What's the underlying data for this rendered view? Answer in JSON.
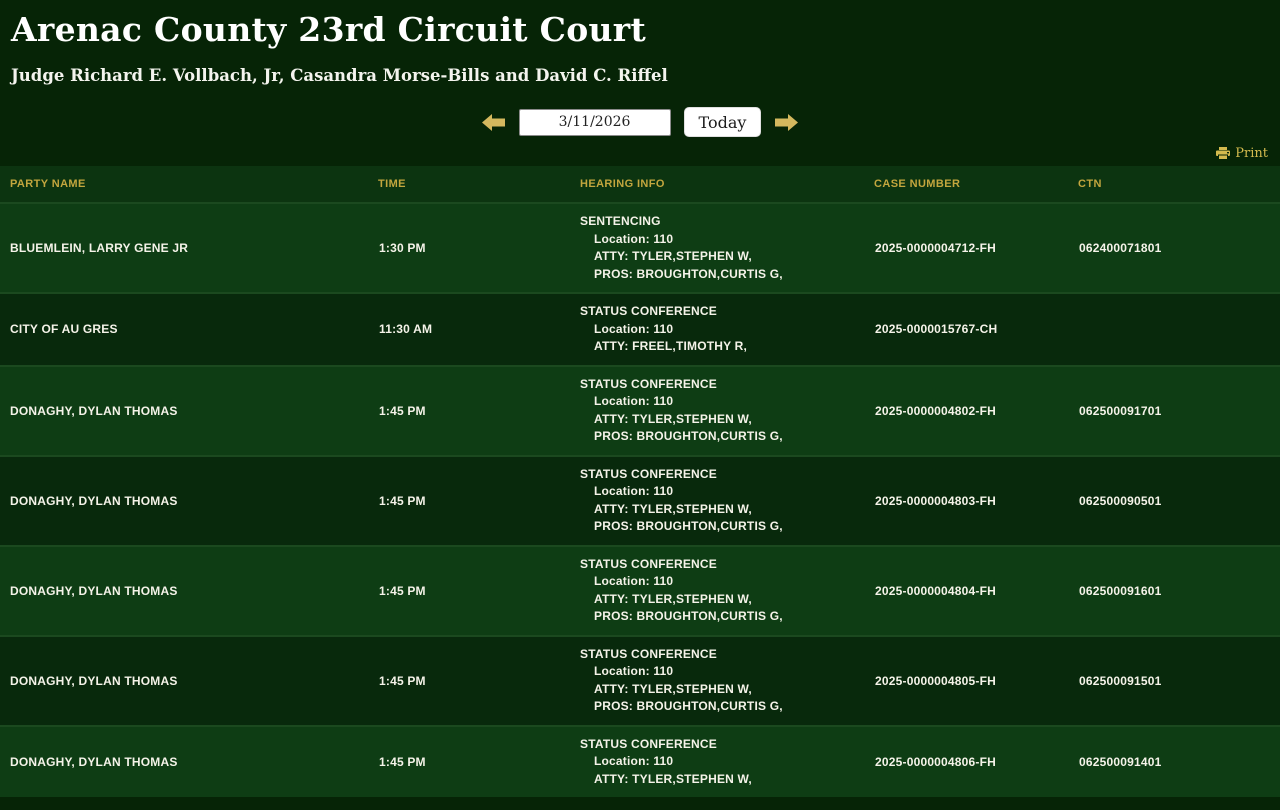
{
  "page": {
    "title": "Arenac County 23rd Circuit Court",
    "subtitle": "Judge Richard E. Vollbach, Jr, Casandra Morse-Bills and David C. Riffel"
  },
  "nav": {
    "date_value": "3/11/2026",
    "today_label": "Today",
    "prev_icon": "left-arrow",
    "next_icon": "right-arrow"
  },
  "toolbar": {
    "print_label": "Print",
    "print_icon": "printer-icon"
  },
  "table": {
    "headers": [
      "PARTY NAME",
      "TIME",
      "HEARING INFO",
      "CASE NUMBER",
      "CTN"
    ],
    "rows": [
      {
        "party": "BLUEMLEIN, LARRY GENE JR",
        "time": "1:30 PM",
        "hearing_type": "SENTENCING",
        "details": [
          "Location: 110",
          "ATTY: TYLER,STEPHEN W,",
          "PROS: BROUGHTON,CURTIS G,"
        ],
        "case_number": "2025-0000004712-FH",
        "ctn": "062400071801"
      },
      {
        "party": "CITY OF AU GRES",
        "time": "11:30 AM",
        "hearing_type": "STATUS CONFERENCE",
        "details": [
          "Location: 110",
          "ATTY: FREEL,TIMOTHY R,"
        ],
        "case_number": "2025-0000015767-CH",
        "ctn": ""
      },
      {
        "party": "DONAGHY, DYLAN THOMAS",
        "time": "1:45 PM",
        "hearing_type": "STATUS CONFERENCE",
        "details": [
          "Location: 110",
          "ATTY: TYLER,STEPHEN W,",
          "PROS: BROUGHTON,CURTIS G,"
        ],
        "case_number": "2025-0000004802-FH",
        "ctn": "062500091701"
      },
      {
        "party": "DONAGHY, DYLAN THOMAS",
        "time": "1:45 PM",
        "hearing_type": "STATUS CONFERENCE",
        "details": [
          "Location: 110",
          "ATTY: TYLER,STEPHEN W,",
          "PROS: BROUGHTON,CURTIS G,"
        ],
        "case_number": "2025-0000004803-FH",
        "ctn": "062500090501"
      },
      {
        "party": "DONAGHY, DYLAN THOMAS",
        "time": "1:45 PM",
        "hearing_type": "STATUS CONFERENCE",
        "details": [
          "Location: 110",
          "ATTY: TYLER,STEPHEN W,",
          "PROS: BROUGHTON,CURTIS G,"
        ],
        "case_number": "2025-0000004804-FH",
        "ctn": "062500091601"
      },
      {
        "party": "DONAGHY, DYLAN THOMAS",
        "time": "1:45 PM",
        "hearing_type": "STATUS CONFERENCE",
        "details": [
          "Location: 110",
          "ATTY: TYLER,STEPHEN W,",
          "PROS: BROUGHTON,CURTIS G,"
        ],
        "case_number": "2025-0000004805-FH",
        "ctn": "062500091501"
      },
      {
        "party": "DONAGHY, DYLAN THOMAS",
        "time": "1:45 PM",
        "hearing_type": "STATUS CONFERENCE",
        "details": [
          "Location: 110",
          "ATTY: TYLER,STEPHEN W,"
        ],
        "case_number": "2025-0000004806-FH",
        "ctn": "062500091401"
      }
    ]
  },
  "colors": {
    "page_bg": "#062406",
    "header_row_bg": "#0c3410",
    "row_light_bg": "#0e3d14",
    "row_dark_bg": "#08290c",
    "header_text_gold": "#c3a63e",
    "arrow_gold": "#d4b85e",
    "print_gold": "#d3ba4e",
    "row_text": "#f5f3e9"
  }
}
